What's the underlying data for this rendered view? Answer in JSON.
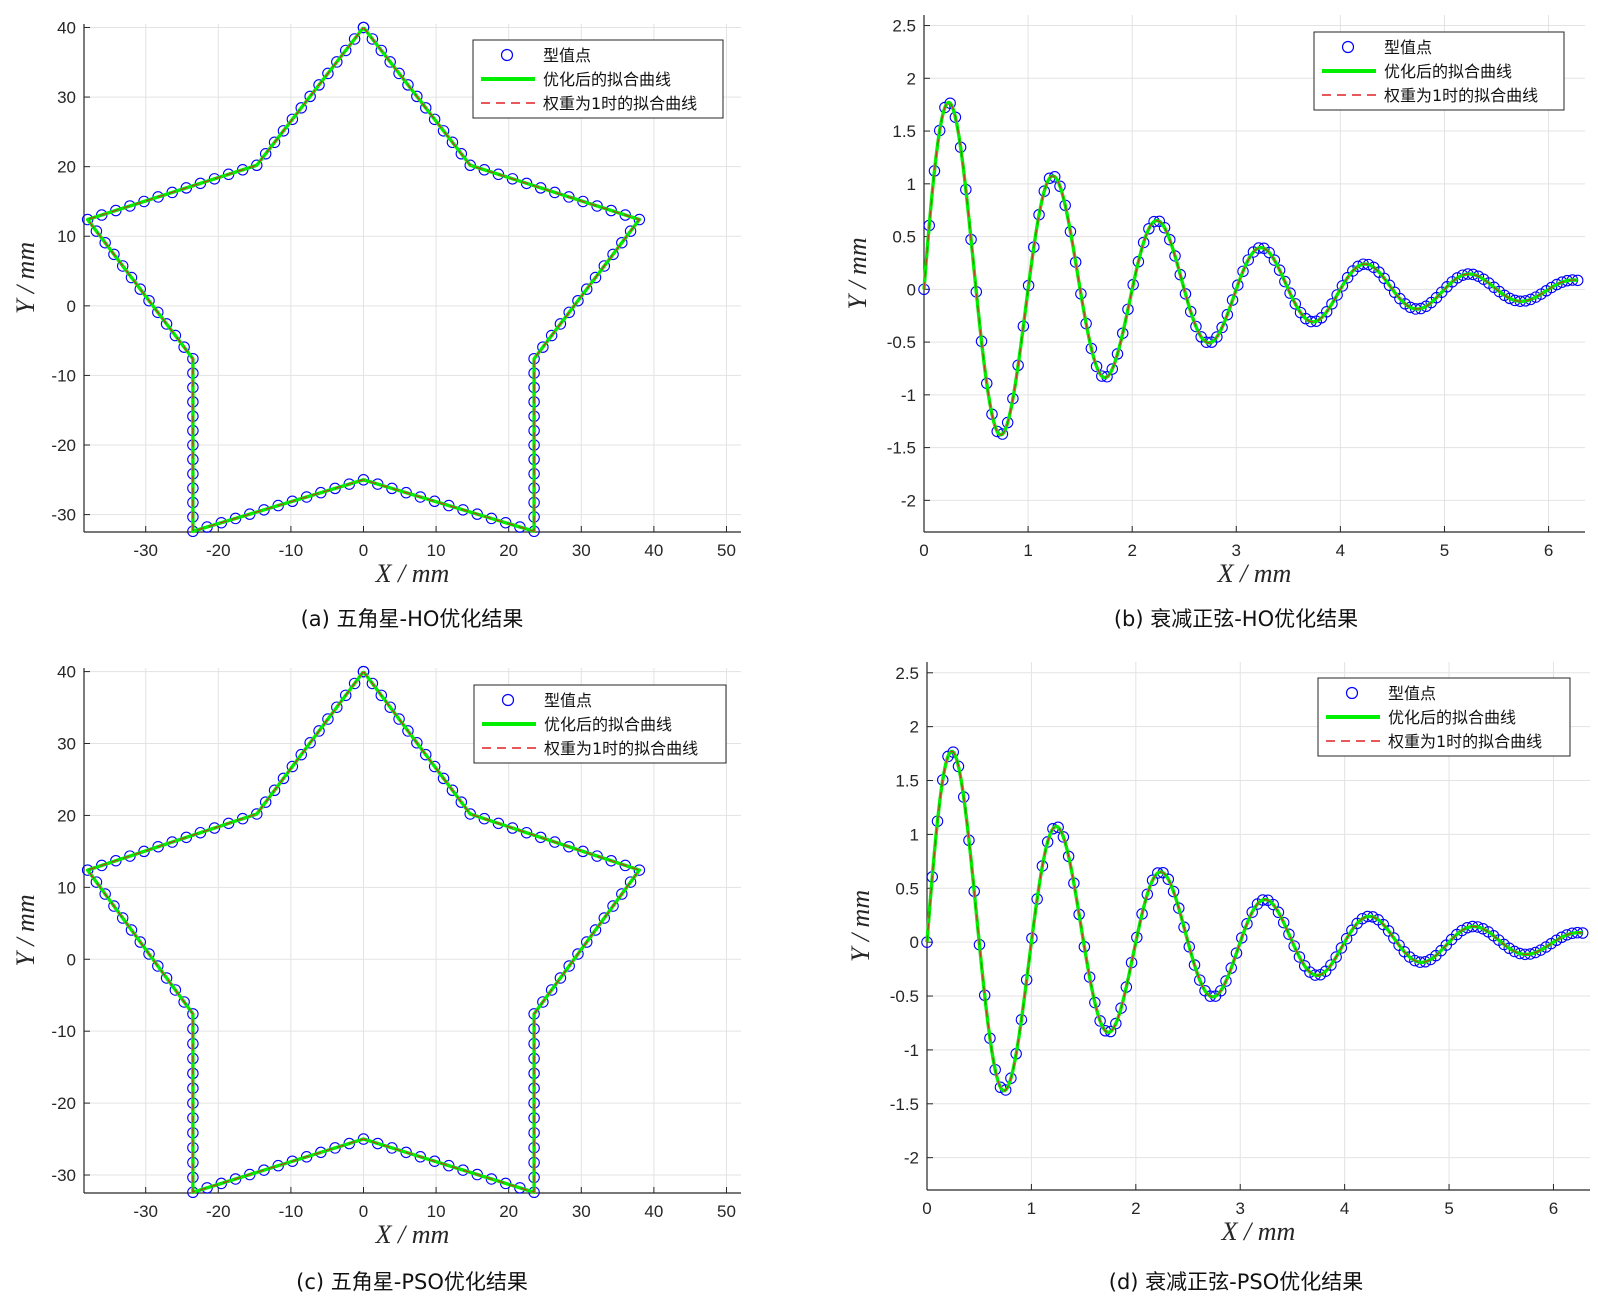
{
  "chart_data": [
    {
      "type": "line",
      "kind": "star",
      "caption": "(a) 五角星-HO优化结果",
      "xlabel": "X / mm",
      "ylabel": "Y / mm",
      "xlim": [
        -38.5,
        52
      ],
      "ylim": [
        -32.5,
        40.5
      ],
      "xticks": [
        -30,
        -20,
        -10,
        0,
        10,
        20,
        30,
        40,
        50
      ],
      "yticks": [
        -30,
        -20,
        -10,
        0,
        10,
        20,
        30,
        40
      ],
      "grid": true,
      "legend_position": "top-right",
      "series": [
        {
          "name": "型值点",
          "style": "markers",
          "color": "#0000ff"
        },
        {
          "name": "优化后的拟合曲线",
          "style": "solid",
          "color": "#00ee00"
        },
        {
          "name": "权重为1时的拟合曲线",
          "style": "dashed",
          "color": "#e02020"
        }
      ],
      "vertices": [
        [
          0,
          40
        ],
        [
          14.7,
          20.2
        ],
        [
          38,
          12.4
        ],
        [
          23.5,
          -7.6
        ],
        [
          23.5,
          -32.4
        ],
        [
          0,
          -25
        ],
        [
          -23.5,
          -32.4
        ],
        [
          -23.5,
          -7.6
        ],
        [
          -38,
          12.4
        ],
        [
          -14.7,
          20.2
        ],
        [
          0,
          40
        ]
      ],
      "points_per_edge": 12
    },
    {
      "type": "line",
      "kind": "damped",
      "caption": "(b) 衰减正弦-HO优化结果",
      "xlabel": "X / mm",
      "ylabel": "Y / mm",
      "xlim": [
        0,
        6.35
      ],
      "ylim": [
        -2.3,
        2.6
      ],
      "xticks": [
        0,
        1,
        2,
        3,
        4,
        5,
        6
      ],
      "yticks": [
        -2,
        -1.5,
        -1,
        -0.5,
        0,
        0.5,
        1,
        1.5,
        2,
        2.5
      ],
      "grid": true,
      "legend_position": "top-right",
      "series": [
        {
          "name": "型值点",
          "style": "markers",
          "color": "#0000ff"
        },
        {
          "name": "优化后的拟合曲线",
          "style": "solid",
          "color": "#00ee00"
        },
        {
          "name": "权重为1时的拟合曲线",
          "style": "dashed",
          "color": "#e02020"
        }
      ],
      "function": "y = 2·exp(-0.5x)·sin(2πx)",
      "x_range": [
        0,
        6.28
      ],
      "n_points": 126
    },
    {
      "type": "line",
      "kind": "star",
      "caption": "(c) 五角星-PSO优化结果",
      "xlabel": "X / mm",
      "ylabel": "Y / mm",
      "xlim": [
        -38.5,
        52
      ],
      "ylim": [
        -32.5,
        40.5
      ],
      "xticks": [
        -30,
        -20,
        -10,
        0,
        10,
        20,
        30,
        40,
        50
      ],
      "yticks": [
        -30,
        -20,
        -10,
        0,
        10,
        20,
        30,
        40
      ],
      "grid": true,
      "legend_position": "top-right",
      "series": [
        {
          "name": "型值点",
          "style": "markers",
          "color": "#0000ff"
        },
        {
          "name": "优化后的拟合曲线",
          "style": "solid",
          "color": "#00ee00"
        },
        {
          "name": "权重为1时的拟合曲线",
          "style": "dashed",
          "color": "#e02020"
        }
      ],
      "vertices": [
        [
          0,
          40
        ],
        [
          14.7,
          20.2
        ],
        [
          38,
          12.4
        ],
        [
          23.5,
          -7.6
        ],
        [
          23.5,
          -32.4
        ],
        [
          0,
          -25
        ],
        [
          -23.5,
          -32.4
        ],
        [
          -23.5,
          -7.6
        ],
        [
          -38,
          12.4
        ],
        [
          -14.7,
          20.2
        ],
        [
          0,
          40
        ]
      ],
      "points_per_edge": 12
    },
    {
      "type": "line",
      "kind": "damped",
      "caption": "(d) 衰减正弦-PSO优化结果",
      "xlabel": "X / mm",
      "ylabel": "Y / mm",
      "xlim": [
        0,
        6.35
      ],
      "ylim": [
        -2.3,
        2.6
      ],
      "xticks": [
        0,
        1,
        2,
        3,
        4,
        5,
        6
      ],
      "yticks": [
        -2,
        -1.5,
        -1,
        -0.5,
        0,
        0.5,
        1,
        1.5,
        2,
        2.5
      ],
      "grid": true,
      "legend_position": "top-right",
      "series": [
        {
          "name": "型值点",
          "style": "markers",
          "color": "#0000ff"
        },
        {
          "name": "优化后的拟合曲线",
          "style": "solid",
          "color": "#00ee00"
        },
        {
          "name": "权重为1时的拟合曲线",
          "style": "dashed",
          "color": "#e02020"
        }
      ],
      "function": "y = 2·exp(-0.5x)·sin(2πx)",
      "x_range": [
        0,
        6.28
      ],
      "n_points": 126
    }
  ]
}
